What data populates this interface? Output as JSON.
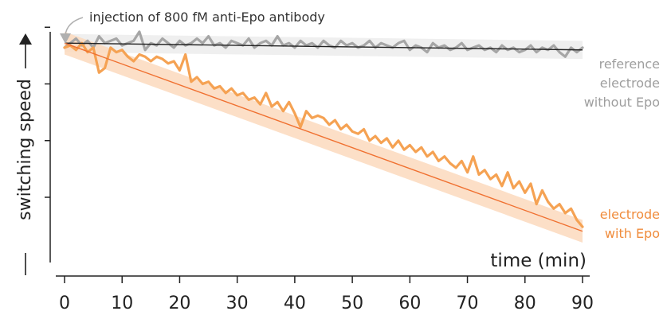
{
  "chart_data": {
    "type": "line",
    "title": "",
    "xlabel": "time (min)",
    "ylabel": "switching speed",
    "xlim": [
      0,
      90
    ],
    "ylim": [
      0,
      1
    ],
    "xticks": [
      "0",
      "10",
      "20",
      "30",
      "40",
      "50",
      "60",
      "70",
      "80",
      "90"
    ],
    "y_tick_labels_shown": false,
    "annotations": [
      {
        "text": "injection of 800 fM anti-Epo antibody",
        "x": 0
      }
    ],
    "series": [
      {
        "name": "reference electrode without Epo",
        "label_lines": [
          "reference",
          "electrode",
          "without Epo"
        ],
        "color": "#a6a6a6",
        "fit": {
          "x": [
            0,
            90
          ],
          "y": [
            0.88,
            0.85
          ],
          "color": "#222222"
        },
        "band_halfwidth": 0.04,
        "x": [
          0,
          1,
          2,
          3,
          4,
          5,
          6,
          7,
          8,
          9,
          10,
          11,
          12,
          13,
          14,
          15,
          16,
          17,
          18,
          19,
          20,
          21,
          22,
          23,
          24,
          25,
          26,
          27,
          28,
          29,
          30,
          31,
          32,
          33,
          34,
          35,
          36,
          37,
          38,
          39,
          40,
          41,
          42,
          43,
          44,
          45,
          46,
          47,
          48,
          49,
          50,
          51,
          52,
          53,
          54,
          55,
          56,
          57,
          58,
          59,
          60,
          61,
          62,
          63,
          64,
          65,
          66,
          67,
          68,
          69,
          70,
          71,
          72,
          73,
          74,
          75,
          76,
          77,
          78,
          79,
          80,
          81,
          82,
          83,
          84,
          85,
          86,
          87,
          88,
          89,
          90
        ],
        "values": [
          0.86,
          0.88,
          0.9,
          0.87,
          0.89,
          0.86,
          0.91,
          0.88,
          0.89,
          0.9,
          0.87,
          0.88,
          0.89,
          0.93,
          0.85,
          0.88,
          0.87,
          0.9,
          0.88,
          0.86,
          0.89,
          0.87,
          0.88,
          0.9,
          0.88,
          0.91,
          0.87,
          0.88,
          0.86,
          0.89,
          0.88,
          0.87,
          0.9,
          0.86,
          0.88,
          0.89,
          0.87,
          0.91,
          0.87,
          0.88,
          0.86,
          0.89,
          0.87,
          0.88,
          0.86,
          0.89,
          0.87,
          0.86,
          0.89,
          0.87,
          0.88,
          0.86,
          0.87,
          0.89,
          0.86,
          0.88,
          0.87,
          0.86,
          0.88,
          0.89,
          0.85,
          0.87,
          0.86,
          0.84,
          0.88,
          0.86,
          0.87,
          0.85,
          0.86,
          0.88,
          0.85,
          0.86,
          0.87,
          0.85,
          0.86,
          0.84,
          0.87,
          0.85,
          0.86,
          0.84,
          0.85,
          0.87,
          0.84,
          0.86,
          0.85,
          0.87,
          0.84,
          0.82,
          0.86,
          0.84,
          0.86
        ]
      },
      {
        "name": "electrode with Epo",
        "label_lines": [
          "electrode",
          "with Epo"
        ],
        "color": "#f5a253",
        "fit": {
          "x": [
            0,
            90
          ],
          "y": [
            0.88,
            0.05
          ],
          "color": "#f07030"
        },
        "band_halfwidth": 0.05,
        "x": [
          0,
          1,
          2,
          3,
          4,
          5,
          6,
          7,
          8,
          9,
          10,
          11,
          12,
          13,
          14,
          15,
          16,
          17,
          18,
          19,
          20,
          21,
          22,
          23,
          24,
          25,
          26,
          27,
          28,
          29,
          30,
          31,
          32,
          33,
          34,
          35,
          36,
          37,
          38,
          39,
          40,
          41,
          42,
          43,
          44,
          45,
          46,
          47,
          48,
          49,
          50,
          51,
          52,
          53,
          54,
          55,
          56,
          57,
          58,
          59,
          60,
          61,
          62,
          63,
          64,
          65,
          66,
          67,
          68,
          69,
          70,
          71,
          72,
          73,
          74,
          75,
          76,
          77,
          78,
          79,
          80,
          81,
          82,
          83,
          84,
          85,
          86,
          87,
          88,
          89,
          90
        ],
        "values": [
          0.86,
          0.87,
          0.85,
          0.88,
          0.84,
          0.86,
          0.75,
          0.77,
          0.86,
          0.84,
          0.85,
          0.82,
          0.8,
          0.83,
          0.82,
          0.8,
          0.82,
          0.81,
          0.79,
          0.8,
          0.76,
          0.83,
          0.71,
          0.73,
          0.7,
          0.71,
          0.68,
          0.69,
          0.66,
          0.68,
          0.65,
          0.66,
          0.63,
          0.64,
          0.61,
          0.66,
          0.6,
          0.62,
          0.58,
          0.62,
          0.57,
          0.51,
          0.58,
          0.55,
          0.56,
          0.55,
          0.52,
          0.54,
          0.5,
          0.52,
          0.49,
          0.48,
          0.5,
          0.45,
          0.47,
          0.44,
          0.46,
          0.42,
          0.45,
          0.41,
          0.43,
          0.4,
          0.42,
          0.38,
          0.4,
          0.36,
          0.38,
          0.35,
          0.33,
          0.36,
          0.31,
          0.38,
          0.3,
          0.32,
          0.28,
          0.3,
          0.25,
          0.31,
          0.24,
          0.27,
          0.22,
          0.26,
          0.17,
          0.23,
          0.18,
          0.15,
          0.17,
          0.13,
          0.15,
          0.1,
          0.07
        ]
      }
    ]
  }
}
